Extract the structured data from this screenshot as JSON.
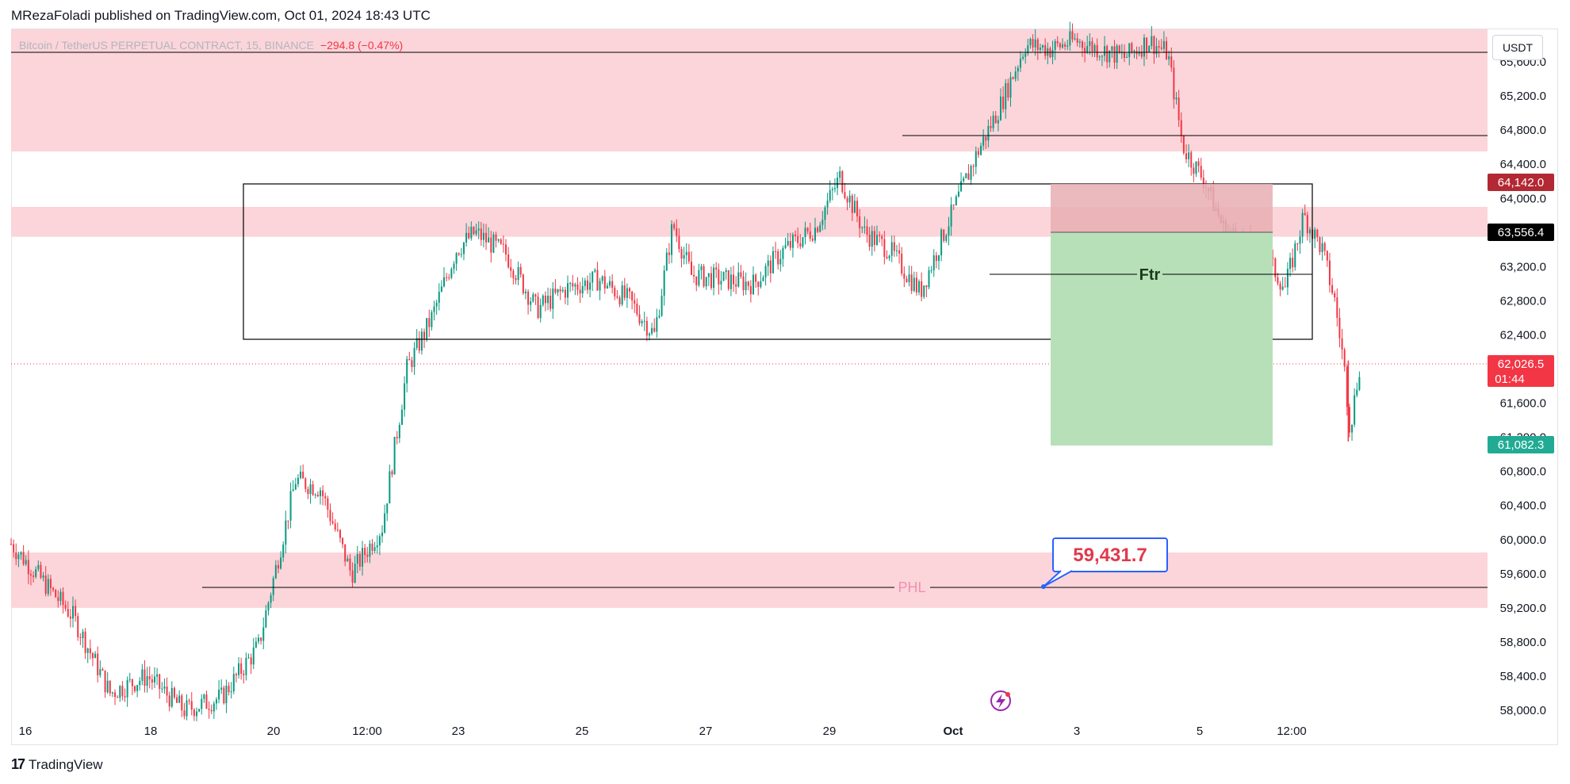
{
  "header": {
    "published_text": "MRezaFoladi published on TradingView.com, Oct 01, 2024 18:43 UTC"
  },
  "symbol": {
    "title": "Bitcoin / TetherUS PERPETUAL CONTRACT, 15, BINANCE",
    "change": "−294.8 (−0.47%)"
  },
  "currency_button": "USDT",
  "footer": {
    "brand": "TradingView"
  },
  "colors": {
    "up": "#089981",
    "down": "#f23645",
    "zone": "#fbd5da",
    "target": "#b7e0b8",
    "stop": "#e8aeb3",
    "price_label_current": "#f23645",
    "price_label_stop": "#b22833",
    "price_label_entry": "#000000",
    "price_label_target": "#22ab94",
    "callout": "#2962ff",
    "phl": "#f48fb1"
  },
  "chart_data": {
    "type": "candlestick",
    "y_axis": {
      "ticks": [
        58000,
        58400,
        58800,
        59200,
        59600,
        60000,
        60400,
        60800,
        61200,
        61600,
        62000,
        62400,
        62800,
        63200,
        63600,
        64000,
        64400,
        64800,
        65200,
        65600
      ],
      "tick_labels": [
        "58,000.0",
        "58,400.0",
        "58,800.0",
        "59,200.0",
        "59,600.0",
        "60,000.0",
        "60,400.0",
        "60,800.0",
        "61,200.0",
        "61,600.0",
        "62,000.0",
        "62,400.0",
        "62,800.0",
        "63,200.0",
        "63,600.0",
        "64,000.0",
        "64,400.0",
        "64,800.0",
        "65,200.0",
        "65,600.0"
      ],
      "range": [
        57900,
        66150
      ]
    },
    "x_axis": {
      "labels": [
        "16",
        "18",
        "20",
        "12:00",
        "23",
        "25",
        "27",
        "29",
        "Oct",
        "3",
        "5",
        "12:00"
      ]
    },
    "price_path": [
      [
        0,
        59950
      ],
      [
        1,
        59100
      ],
      [
        1.6,
        58200
      ],
      [
        2.2,
        58400
      ],
      [
        2.8,
        58000
      ],
      [
        3.4,
        58150
      ],
      [
        4,
        58750
      ],
      [
        4.6,
        60700
      ],
      [
        5,
        60600
      ],
      [
        5.5,
        59600
      ],
      [
        6,
        60150
      ],
      [
        6.4,
        62000
      ],
      [
        6.8,
        62600
      ],
      [
        7.2,
        63400
      ],
      [
        7.5,
        63600
      ],
      [
        8,
        63350
      ],
      [
        8.5,
        62700
      ],
      [
        9,
        62950
      ],
      [
        9.5,
        63050
      ],
      [
        10,
        62800
      ],
      [
        10.4,
        62400
      ],
      [
        10.7,
        63700
      ],
      [
        11,
        63100
      ],
      [
        11.5,
        63050
      ],
      [
        12,
        63000
      ],
      [
        12.5,
        63400
      ],
      [
        13,
        63650
      ],
      [
        13.4,
        64250
      ],
      [
        13.8,
        63600
      ],
      [
        14.2,
        63400
      ],
      [
        14.7,
        62900
      ],
      [
        15.2,
        63800
      ],
      [
        15.6,
        64500
      ],
      [
        16,
        65100
      ],
      [
        16.4,
        65800
      ],
      [
        16.8,
        65750
      ],
      [
        17.2,
        65850
      ],
      [
        17.6,
        65750
      ],
      [
        18.0,
        65650
      ],
      [
        18.4,
        65850
      ],
      [
        18.7,
        65700
      ],
      [
        18.95,
        64600
      ],
      [
        19.3,
        64200
      ],
      [
        19.6,
        63650
      ],
      [
        19.9,
        63500
      ],
      [
        20.3,
        63300
      ],
      [
        20.6,
        62950
      ],
      [
        20.9,
        63800
      ],
      [
        21.2,
        63400
      ],
      [
        21.4,
        62800
      ],
      [
        21.55,
        62050
      ],
      [
        21.65,
        61300
      ],
      [
        21.8,
        62026.5
      ]
    ],
    "last_price": "62,026.5",
    "countdown": "01:44",
    "zones": [
      {
        "from": 64550,
        "to": 66150
      },
      {
        "from": 63550,
        "to": 63900
      },
      {
        "from": 59200,
        "to": 59850
      }
    ],
    "horizontal_lines": [
      65900,
      64650,
      59431.7
    ],
    "range_box": {
      "top": 64142,
      "bottom": 62300
    },
    "ftr_line": {
      "price": 63050,
      "label": "Ftr"
    },
    "phl_label": "PHL",
    "position": {
      "stop": 64142.0,
      "entry": 63556.4,
      "target": 61082.3,
      "stop_label": "64,142.0",
      "entry_label": "63,556.4",
      "target_label": "61,082.3"
    },
    "callout": {
      "text": "59,431.7",
      "price": 59431.7
    }
  }
}
